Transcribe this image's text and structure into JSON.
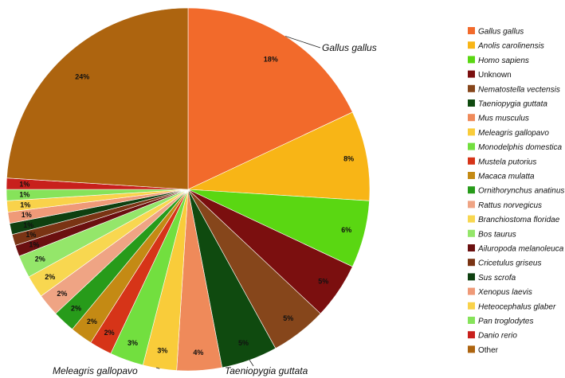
{
  "chart_data": {
    "type": "pie",
    "start_angle_deg": 0,
    "direction": "clockwise",
    "slices": [
      {
        "label": "Gallus gallus",
        "value": 18,
        "display": "18%",
        "color": "#f26a2b",
        "highlight": "#e8302a",
        "italic": true
      },
      {
        "label": "Anolis carolinensis",
        "value": 8,
        "display": "8%",
        "color": "#f8b516",
        "italic": true
      },
      {
        "label": "Homo sapiens",
        "value": 6,
        "display": "6%",
        "color": "#5ad712",
        "italic": true
      },
      {
        "label": "Unknown",
        "value": 5,
        "display": "5%",
        "color": "#7b0f0f",
        "italic": false
      },
      {
        "label": "Nematostella vectensis",
        "value": 5,
        "display": "5%",
        "color": "#86461b",
        "italic": true
      },
      {
        "label": "Taeniopygia guttata",
        "value": 5,
        "display": "5%",
        "color": "#0f4a0f",
        "highlight": "#e8302a",
        "italic": true
      },
      {
        "label": "Mus musculus",
        "value": 4,
        "display": "4%",
        "color": "#ef8a5a",
        "italic": true
      },
      {
        "label": "Meleagris gallopavo",
        "value": 3,
        "display": "3%",
        "color": "#f9cc3a",
        "highlight": "#e8302a",
        "italic": true
      },
      {
        "label": "Monodelphis domestica",
        "value": 3,
        "display": "3%",
        "color": "#72df3f",
        "italic": true
      },
      {
        "label": "Mustela putorius",
        "value": 2,
        "display": "2%",
        "color": "#d63418",
        "italic": true
      },
      {
        "label": "Macaca mulatta",
        "value": 2,
        "display": "2%",
        "color": "#c48a14",
        "italic": true
      },
      {
        "label": "Ornithorynchus anatinus",
        "value": 2,
        "display": "2%",
        "color": "#279b1a",
        "italic": true
      },
      {
        "label": "Rattus norvegicus",
        "value": 2,
        "display": "2%",
        "color": "#efa484",
        "italic": true
      },
      {
        "label": "Branchiostoma floridae",
        "value": 2,
        "display": "2%",
        "color": "#f8d750",
        "italic": true
      },
      {
        "label": "Bos taurus",
        "value": 2,
        "display": "2%",
        "color": "#94e66a",
        "italic": true
      },
      {
        "label": "Ailuropoda melanoleuca",
        "value": 1,
        "display": "1%",
        "color": "#6b1010",
        "italic": true
      },
      {
        "label": "Cricetulus griseus",
        "value": 1,
        "display": "1%",
        "color": "#7a3414",
        "italic": true
      },
      {
        "label": "Sus scrofa",
        "value": 1,
        "display": "1%",
        "color": "#0e4010",
        "italic": true
      },
      {
        "label": "Xenopus laevis",
        "value": 1,
        "display": "1%",
        "color": "#ef9a78",
        "italic": true
      },
      {
        "label": "Heteocephalus glaber",
        "value": 1,
        "display": "1%",
        "color": "#f9d24a",
        "italic": true
      },
      {
        "label": "Pan troglodytes",
        "value": 1,
        "display": "1%",
        "color": "#86e35a",
        "italic": true
      },
      {
        "label": "Danio rerio",
        "value": 1,
        "display": "1%",
        "color": "#c8201c",
        "italic": true
      },
      {
        "label": "Other",
        "value": 24,
        "display": "24%",
        "color": "#ad640f",
        "italic": false
      }
    ],
    "callouts": [
      "Gallus gallus",
      "Taeniopygia guttata",
      "Meleagris gallopavo"
    ],
    "legend_placement": "right"
  }
}
